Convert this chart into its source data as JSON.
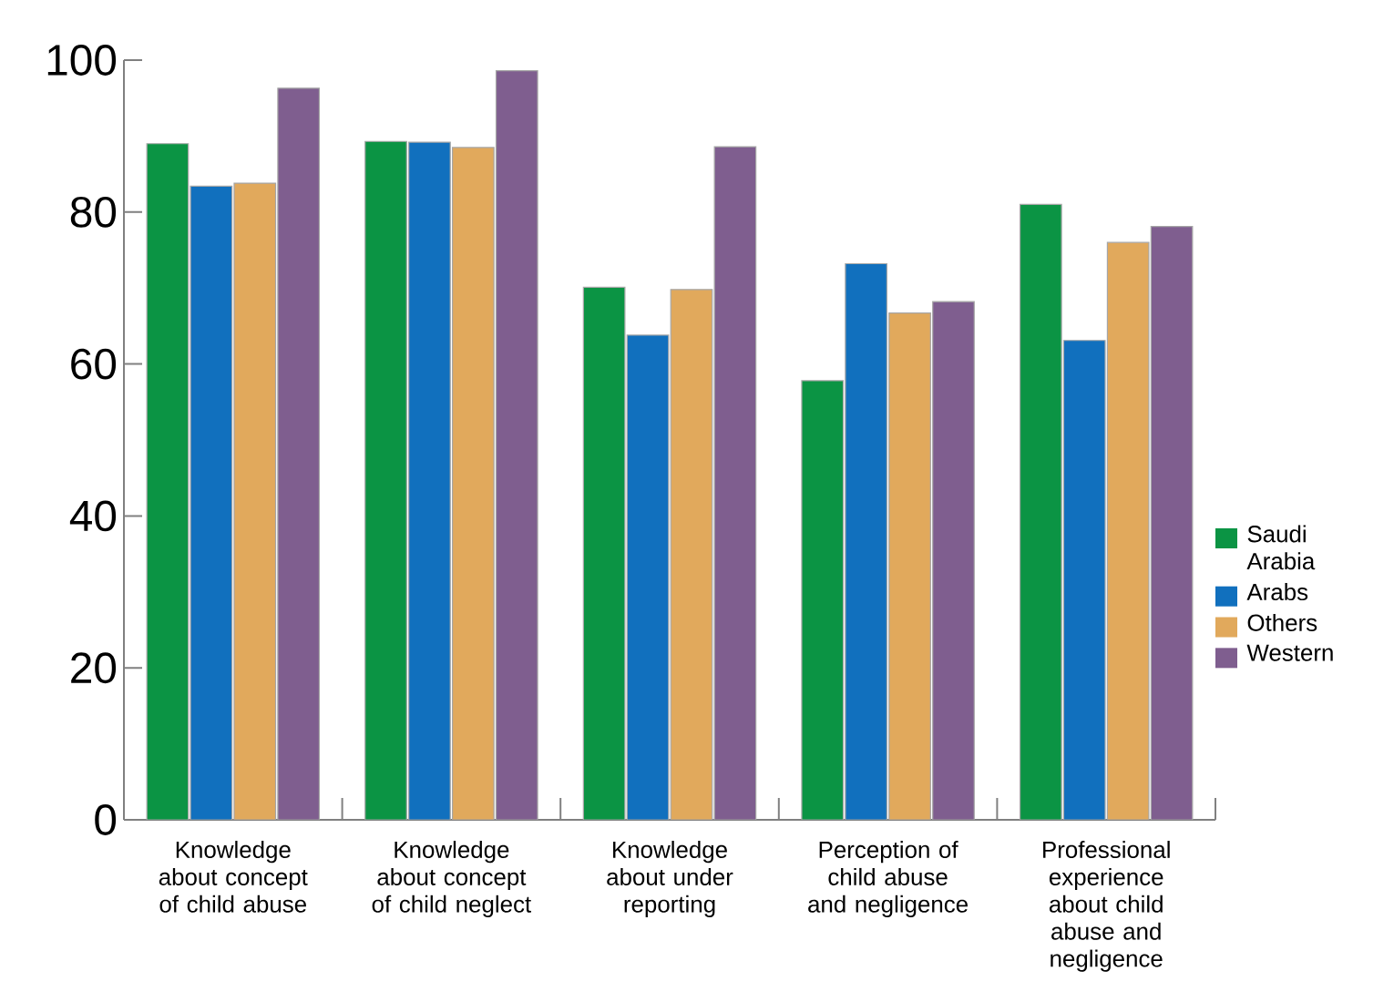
{
  "chart_data": {
    "type": "bar",
    "categories": [
      "Knowledge about concept of child abuse",
      "Knowledge about concept of child neglect",
      "Knowledge about under reporting",
      "Perception of child abuse and negligence",
      "Professional experience about child abuse and negligence"
    ],
    "series": [
      {
        "name": "Saudi Arabia",
        "color": "#0b9444",
        "values": [
          89.0,
          89.3,
          70.1,
          57.8,
          81.0
        ]
      },
      {
        "name": "Arabs",
        "color": "#1170be",
        "values": [
          83.4,
          89.2,
          63.8,
          73.2,
          63.1
        ]
      },
      {
        "name": "Others",
        "color": "#e1a95c",
        "values": [
          83.8,
          88.5,
          69.8,
          66.7,
          76.0
        ]
      },
      {
        "name": "Western",
        "color": "#7f5e8f",
        "values": [
          96.3,
          98.6,
          88.6,
          68.2,
          78.1
        ]
      }
    ],
    "ylim": [
      0,
      100
    ],
    "yticks": [
      0,
      20,
      40,
      60,
      80,
      100
    ],
    "grid": false,
    "legend": "right"
  }
}
